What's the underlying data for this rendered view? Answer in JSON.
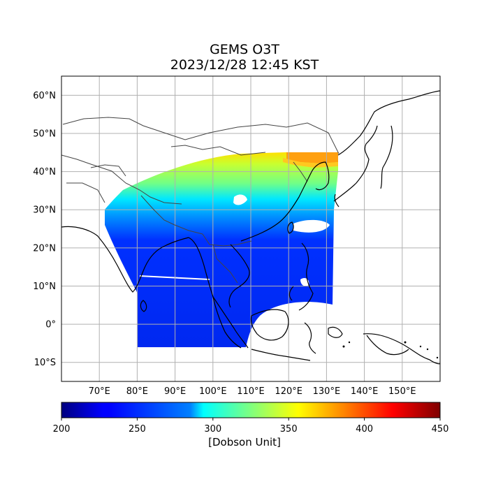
{
  "title": {
    "line1": "GEMS O3T",
    "line2": "2023/12/28 12:45 KST"
  },
  "map": {
    "lon_range": [
      60,
      160
    ],
    "lat_range": [
      -15,
      65
    ],
    "lat_ticks": [
      {
        "value": 60,
        "label": "60°N"
      },
      {
        "value": 50,
        "label": "50°N"
      },
      {
        "value": 40,
        "label": "40°N"
      },
      {
        "value": 30,
        "label": "30°N"
      },
      {
        "value": 20,
        "label": "20°N"
      },
      {
        "value": 10,
        "label": "10°N"
      },
      {
        "value": 0,
        "label": "0°"
      },
      {
        "value": -10,
        "label": "10°S"
      }
    ],
    "lon_ticks": [
      {
        "value": 70,
        "label": "70°E"
      },
      {
        "value": 80,
        "label": "80°E"
      },
      {
        "value": 90,
        "label": "90°E"
      },
      {
        "value": 100,
        "label": "100°E"
      },
      {
        "value": 110,
        "label": "110°E"
      },
      {
        "value": 120,
        "label": "120°E"
      },
      {
        "value": 130,
        "label": "130°E"
      },
      {
        "value": 140,
        "label": "140°E"
      },
      {
        "value": 150,
        "label": "150°E"
      }
    ],
    "gridlines": true
  },
  "colorbar": {
    "min": 200,
    "max": 450,
    "ticks": [
      "200",
      "250",
      "300",
      "350",
      "400",
      "450"
    ],
    "label": "[Dobson Unit]",
    "colormap": "jet"
  },
  "colors": {
    "grid": "#b0b0b0",
    "coast": "#000000",
    "border": "#444444"
  }
}
